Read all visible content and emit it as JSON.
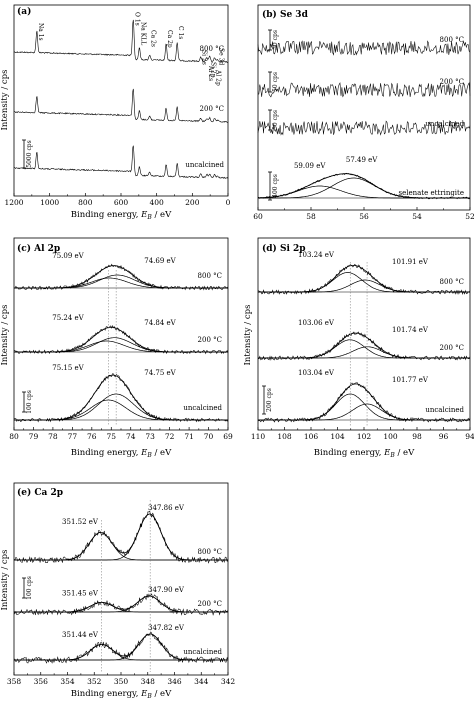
{
  "figure": {
    "type": "xps-spectra",
    "panels": [
      {
        "id": "a",
        "title": "(a)",
        "xlabel": "Binding energy, Eb / eV",
        "ylabel": "Intensity / cps",
        "xlim": [
          1200,
          0
        ],
        "xticks": [
          "1200",
          "1000",
          "800",
          "600",
          "400",
          "200",
          "0"
        ],
        "scalebar": "5000 cps",
        "traces": [
          "800 °C",
          "200 °C",
          "uncalcined"
        ],
        "peak_labels": [
          "Na 1s",
          "O 1s",
          "Na KLL",
          "Ca 2s",
          "Ca 2p",
          "C 1s",
          "Si 2s",
          "Al 2s",
          "Si 2p",
          "Al 2p",
          "Se 3d"
        ]
      },
      {
        "id": "b",
        "title": "(b) Se 3d",
        "xlim": [
          62,
          52
        ],
        "xticks": [
          "60",
          "58",
          "56",
          "54",
          "52"
        ],
        "scalebars": [
          "50 cps",
          "50 cps",
          "50 cps",
          "400 cps"
        ],
        "traces": [
          "800 °C",
          "200 °C",
          "uncalcined",
          "selenate ettringite"
        ],
        "peaks": [
          "59.09 eV",
          "57.49 eV"
        ]
      },
      {
        "id": "c",
        "title": "(c) Al 2p",
        "xlabel": "Binding energy, Eb / eV",
        "ylabel": "Intensity / cps",
        "xlim": [
          80,
          69
        ],
        "xticks": [
          "80",
          "79",
          "78",
          "77",
          "76",
          "75",
          "74",
          "73",
          "72",
          "71",
          "70",
          "69"
        ],
        "scalebar": "100 cps",
        "traces": [
          "800 °C",
          "200 °C",
          "uncalcined"
        ],
        "peaks": [
          [
            "75.09 eV",
            "74.69 eV"
          ],
          [
            "75.24 eV",
            "74.84 eV"
          ],
          [
            "75.15 eV",
            "74.75 eV"
          ]
        ]
      },
      {
        "id": "d",
        "title": "(d) Si 2p",
        "xlabel": "Binding energy, Eb / eV",
        "xlim": [
          110,
          94
        ],
        "xticks": [
          "110",
          "108",
          "106",
          "104",
          "102",
          "100",
          "98",
          "96",
          "94"
        ],
        "scalebar": "200 cps",
        "traces": [
          "800 °C",
          "200 °C",
          "uncalcined"
        ],
        "peaks": [
          [
            "103.24 eV",
            "101.91 eV"
          ],
          [
            "103.06 eV",
            "101.74 eV"
          ],
          [
            "103.04 eV",
            "101.77 eV"
          ]
        ]
      },
      {
        "id": "e",
        "title": "(e) Ca 2p",
        "xlabel": "Binding energy, Eb / eV",
        "ylabel": "Intensity / cps",
        "xlim": [
          358,
          342
        ],
        "xticks": [
          "358",
          "356",
          "354",
          "352",
          "350",
          "348",
          "346",
          "344",
          "342"
        ],
        "scalebar": "100 cps",
        "traces": [
          "800 °C",
          "200 °C",
          "uncalcined"
        ],
        "peaks": [
          [
            "351.52 eV",
            "347.86 eV"
          ],
          [
            "351.45 eV",
            "347.90 eV"
          ],
          [
            "351.44 eV",
            "347.82 eV"
          ]
        ]
      }
    ]
  },
  "chart_data": [
    {
      "type": "line",
      "title": "(a)",
      "xlabel": "Binding energy, Eb / eV",
      "ylabel": "Intensity / cps",
      "xlim": [
        1200,
        0
      ],
      "series": [
        {
          "name": "800 °C"
        },
        {
          "name": "200 °C"
        },
        {
          "name": "uncalcined"
        }
      ],
      "peak_positions": {
        "Na 1s": 1072,
        "O 1s": 531,
        "Na KLL": 497,
        "Ca 2s": 439,
        "Ca 2p": 347,
        "C 1s": 285,
        "Si 2s": 153,
        "Al 2s": 119,
        "Si 2p": 103,
        "Al 2p": 75,
        "Se 3d": 58
      }
    },
    {
      "type": "line",
      "title": "(b) Se 3d",
      "xlim": [
        62,
        52
      ],
      "series": [
        {
          "name": "800 °C"
        },
        {
          "name": "200 °C"
        },
        {
          "name": "uncalcined"
        },
        {
          "name": "selenate ettringite",
          "peaks_eV": [
            59.09,
            57.49
          ]
        }
      ]
    },
    {
      "type": "line",
      "title": "(c) Al 2p",
      "xlim": [
        80,
        69
      ],
      "series": [
        {
          "name": "800 °C",
          "peaks_eV": [
            75.09,
            74.69
          ]
        },
        {
          "name": "200 °C",
          "peaks_eV": [
            75.24,
            74.84
          ]
        },
        {
          "name": "uncalcined",
          "peaks_eV": [
            75.15,
            74.75
          ]
        }
      ]
    },
    {
      "type": "line",
      "title": "(d) Si 2p",
      "xlim": [
        110,
        94
      ],
      "series": [
        {
          "name": "800 °C",
          "peaks_eV": [
            103.24,
            101.91
          ]
        },
        {
          "name": "200 °C",
          "peaks_eV": [
            103.06,
            101.74
          ]
        },
        {
          "name": "uncalcined",
          "peaks_eV": [
            103.04,
            101.77
          ]
        }
      ]
    },
    {
      "type": "line",
      "title": "(e) Ca 2p",
      "xlim": [
        358,
        342
      ],
      "series": [
        {
          "name": "800 °C",
          "peaks_eV": [
            351.52,
            347.86
          ]
        },
        {
          "name": "200 °C",
          "peaks_eV": [
            351.45,
            347.9
          ]
        },
        {
          "name": "uncalcined",
          "peaks_eV": [
            351.44,
            347.82
          ]
        }
      ]
    }
  ]
}
